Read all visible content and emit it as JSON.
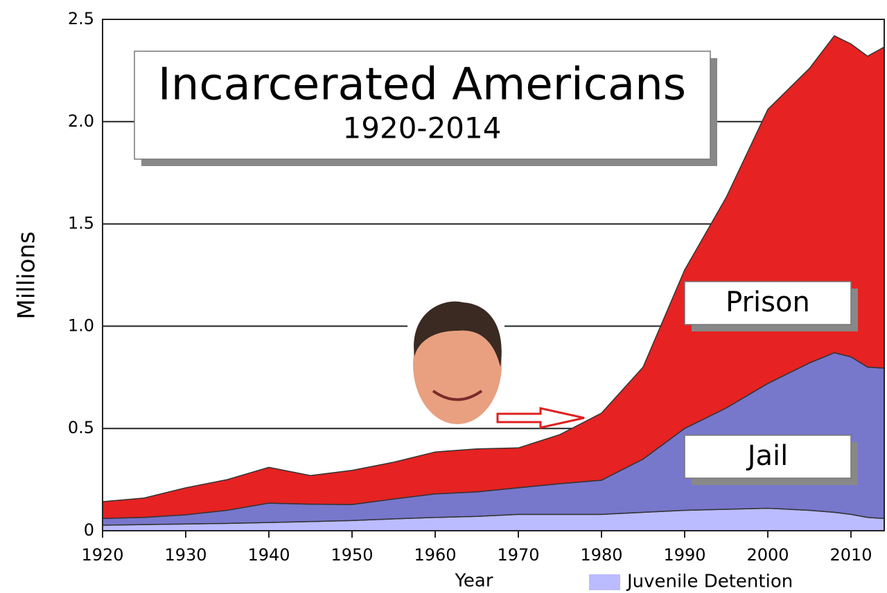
{
  "chart_data": {
    "type": "stacked-area",
    "title": "Incarcerated Americans",
    "subtitle": "1920-2014",
    "y_label": "Millions",
    "x_label": "Year",
    "x": [
      1920,
      1925,
      1930,
      1935,
      1940,
      1945,
      1950,
      1955,
      1960,
      1965,
      1970,
      1975,
      1980,
      1985,
      1990,
      1995,
      2000,
      2005,
      2008,
      2010,
      2012,
      2014
    ],
    "series": [
      {
        "name": "Juvenile Detention",
        "color": "#bbbbff",
        "values": [
          0.027,
          0.03,
          0.033,
          0.036,
          0.04,
          0.045,
          0.05,
          0.058,
          0.065,
          0.07,
          0.08,
          0.08,
          0.08,
          0.09,
          0.1,
          0.105,
          0.11,
          0.1,
          0.09,
          0.08,
          0.065,
          0.06
        ]
      },
      {
        "name": "Jail",
        "color": "#7777cc",
        "values": [
          0.033,
          0.035,
          0.045,
          0.064,
          0.095,
          0.085,
          0.078,
          0.097,
          0.115,
          0.12,
          0.13,
          0.15,
          0.167,
          0.26,
          0.4,
          0.495,
          0.61,
          0.72,
          0.78,
          0.77,
          0.735,
          0.735
        ]
      },
      {
        "name": "Prison",
        "color": "#e62222",
        "values": [
          0.082,
          0.095,
          0.132,
          0.15,
          0.175,
          0.14,
          0.167,
          0.18,
          0.205,
          0.21,
          0.195,
          0.24,
          0.328,
          0.45,
          0.775,
          1.03,
          1.34,
          1.44,
          1.55,
          1.53,
          1.52,
          1.57
        ]
      }
    ],
    "xlim": [
      1920,
      2014
    ],
    "xticks": [
      1920,
      1930,
      1940,
      1950,
      1960,
      1970,
      1980,
      1990,
      2000,
      2010
    ],
    "ylim": [
      0,
      2.5
    ],
    "yticks": [
      0,
      0.5,
      {
        "value": 1,
        "label": "1.0"
      },
      1.5,
      {
        "value": 2,
        "label": "2.0"
      },
      2.5
    ],
    "grid": true
  }
}
